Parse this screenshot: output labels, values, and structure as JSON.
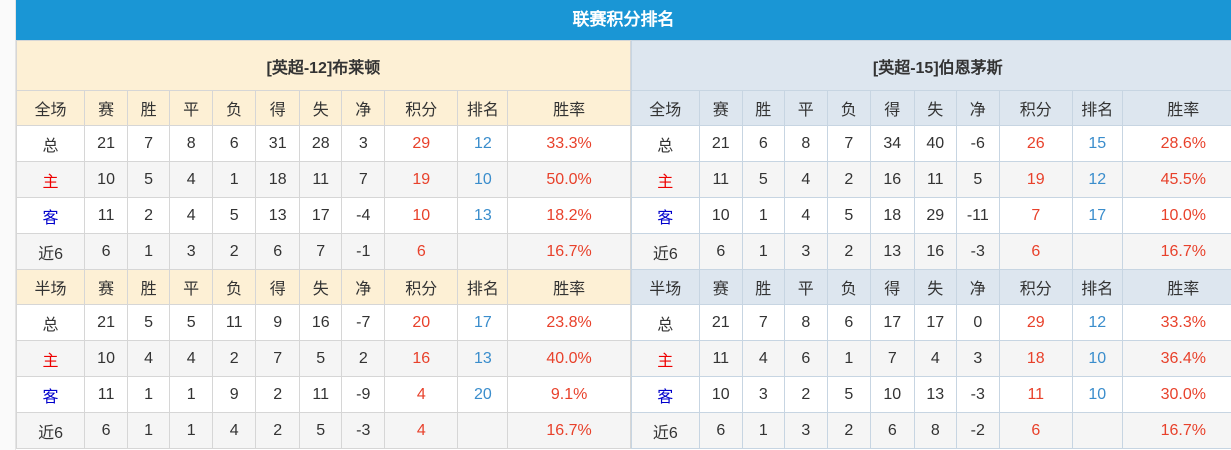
{
  "title": "联赛积分排名",
  "headers": [
    "赛",
    "胜",
    "平",
    "负",
    "得",
    "失",
    "净",
    "积分",
    "排名",
    "胜率"
  ],
  "colors": {
    "title_bg": "#1a96d5",
    "points": "#e8412b",
    "rank": "#3a8dcc",
    "home": "#e00000",
    "away": "#0000cc"
  },
  "teams": [
    {
      "name": "[英超-12]布莱顿",
      "full": {
        "label": "全场",
        "rows": [
          [
            "总",
            "21",
            "7",
            "8",
            "6",
            "31",
            "28",
            "3",
            "29",
            "12",
            "33.3%"
          ],
          [
            "主",
            "10",
            "5",
            "4",
            "1",
            "18",
            "11",
            "7",
            "19",
            "10",
            "50.0%"
          ],
          [
            "客",
            "11",
            "2",
            "4",
            "5",
            "13",
            "17",
            "-4",
            "10",
            "13",
            "18.2%"
          ],
          [
            "近6",
            "6",
            "1",
            "3",
            "2",
            "6",
            "7",
            "-1",
            "6",
            "",
            "16.7%"
          ]
        ]
      },
      "half": {
        "label": "半场",
        "rows": [
          [
            "总",
            "21",
            "5",
            "5",
            "11",
            "9",
            "16",
            "-7",
            "20",
            "17",
            "23.8%"
          ],
          [
            "主",
            "10",
            "4",
            "4",
            "2",
            "7",
            "5",
            "2",
            "16",
            "13",
            "40.0%"
          ],
          [
            "客",
            "11",
            "1",
            "1",
            "9",
            "2",
            "11",
            "-9",
            "4",
            "20",
            "9.1%"
          ],
          [
            "近6",
            "6",
            "1",
            "1",
            "4",
            "2",
            "5",
            "-3",
            "4",
            "",
            "16.7%"
          ]
        ]
      }
    },
    {
      "name": "[英超-15]伯恩茅斯",
      "full": {
        "label": "全场",
        "rows": [
          [
            "总",
            "21",
            "6",
            "8",
            "7",
            "34",
            "40",
            "-6",
            "26",
            "15",
            "28.6%"
          ],
          [
            "主",
            "11",
            "5",
            "4",
            "2",
            "16",
            "11",
            "5",
            "19",
            "12",
            "45.5%"
          ],
          [
            "客",
            "10",
            "1",
            "4",
            "5",
            "18",
            "29",
            "-11",
            "7",
            "17",
            "10.0%"
          ],
          [
            "近6",
            "6",
            "1",
            "3",
            "2",
            "13",
            "16",
            "-3",
            "6",
            "",
            "16.7%"
          ]
        ]
      },
      "half": {
        "label": "半场",
        "rows": [
          [
            "总",
            "21",
            "7",
            "8",
            "6",
            "17",
            "17",
            "0",
            "29",
            "12",
            "33.3%"
          ],
          [
            "主",
            "11",
            "4",
            "6",
            "1",
            "7",
            "4",
            "3",
            "18",
            "10",
            "36.4%"
          ],
          [
            "客",
            "10",
            "3",
            "2",
            "5",
            "10",
            "13",
            "-3",
            "11",
            "10",
            "30.0%"
          ],
          [
            "近6",
            "6",
            "1",
            "3",
            "2",
            "6",
            "8",
            "-2",
            "6",
            "",
            "16.7%"
          ]
        ]
      }
    }
  ]
}
